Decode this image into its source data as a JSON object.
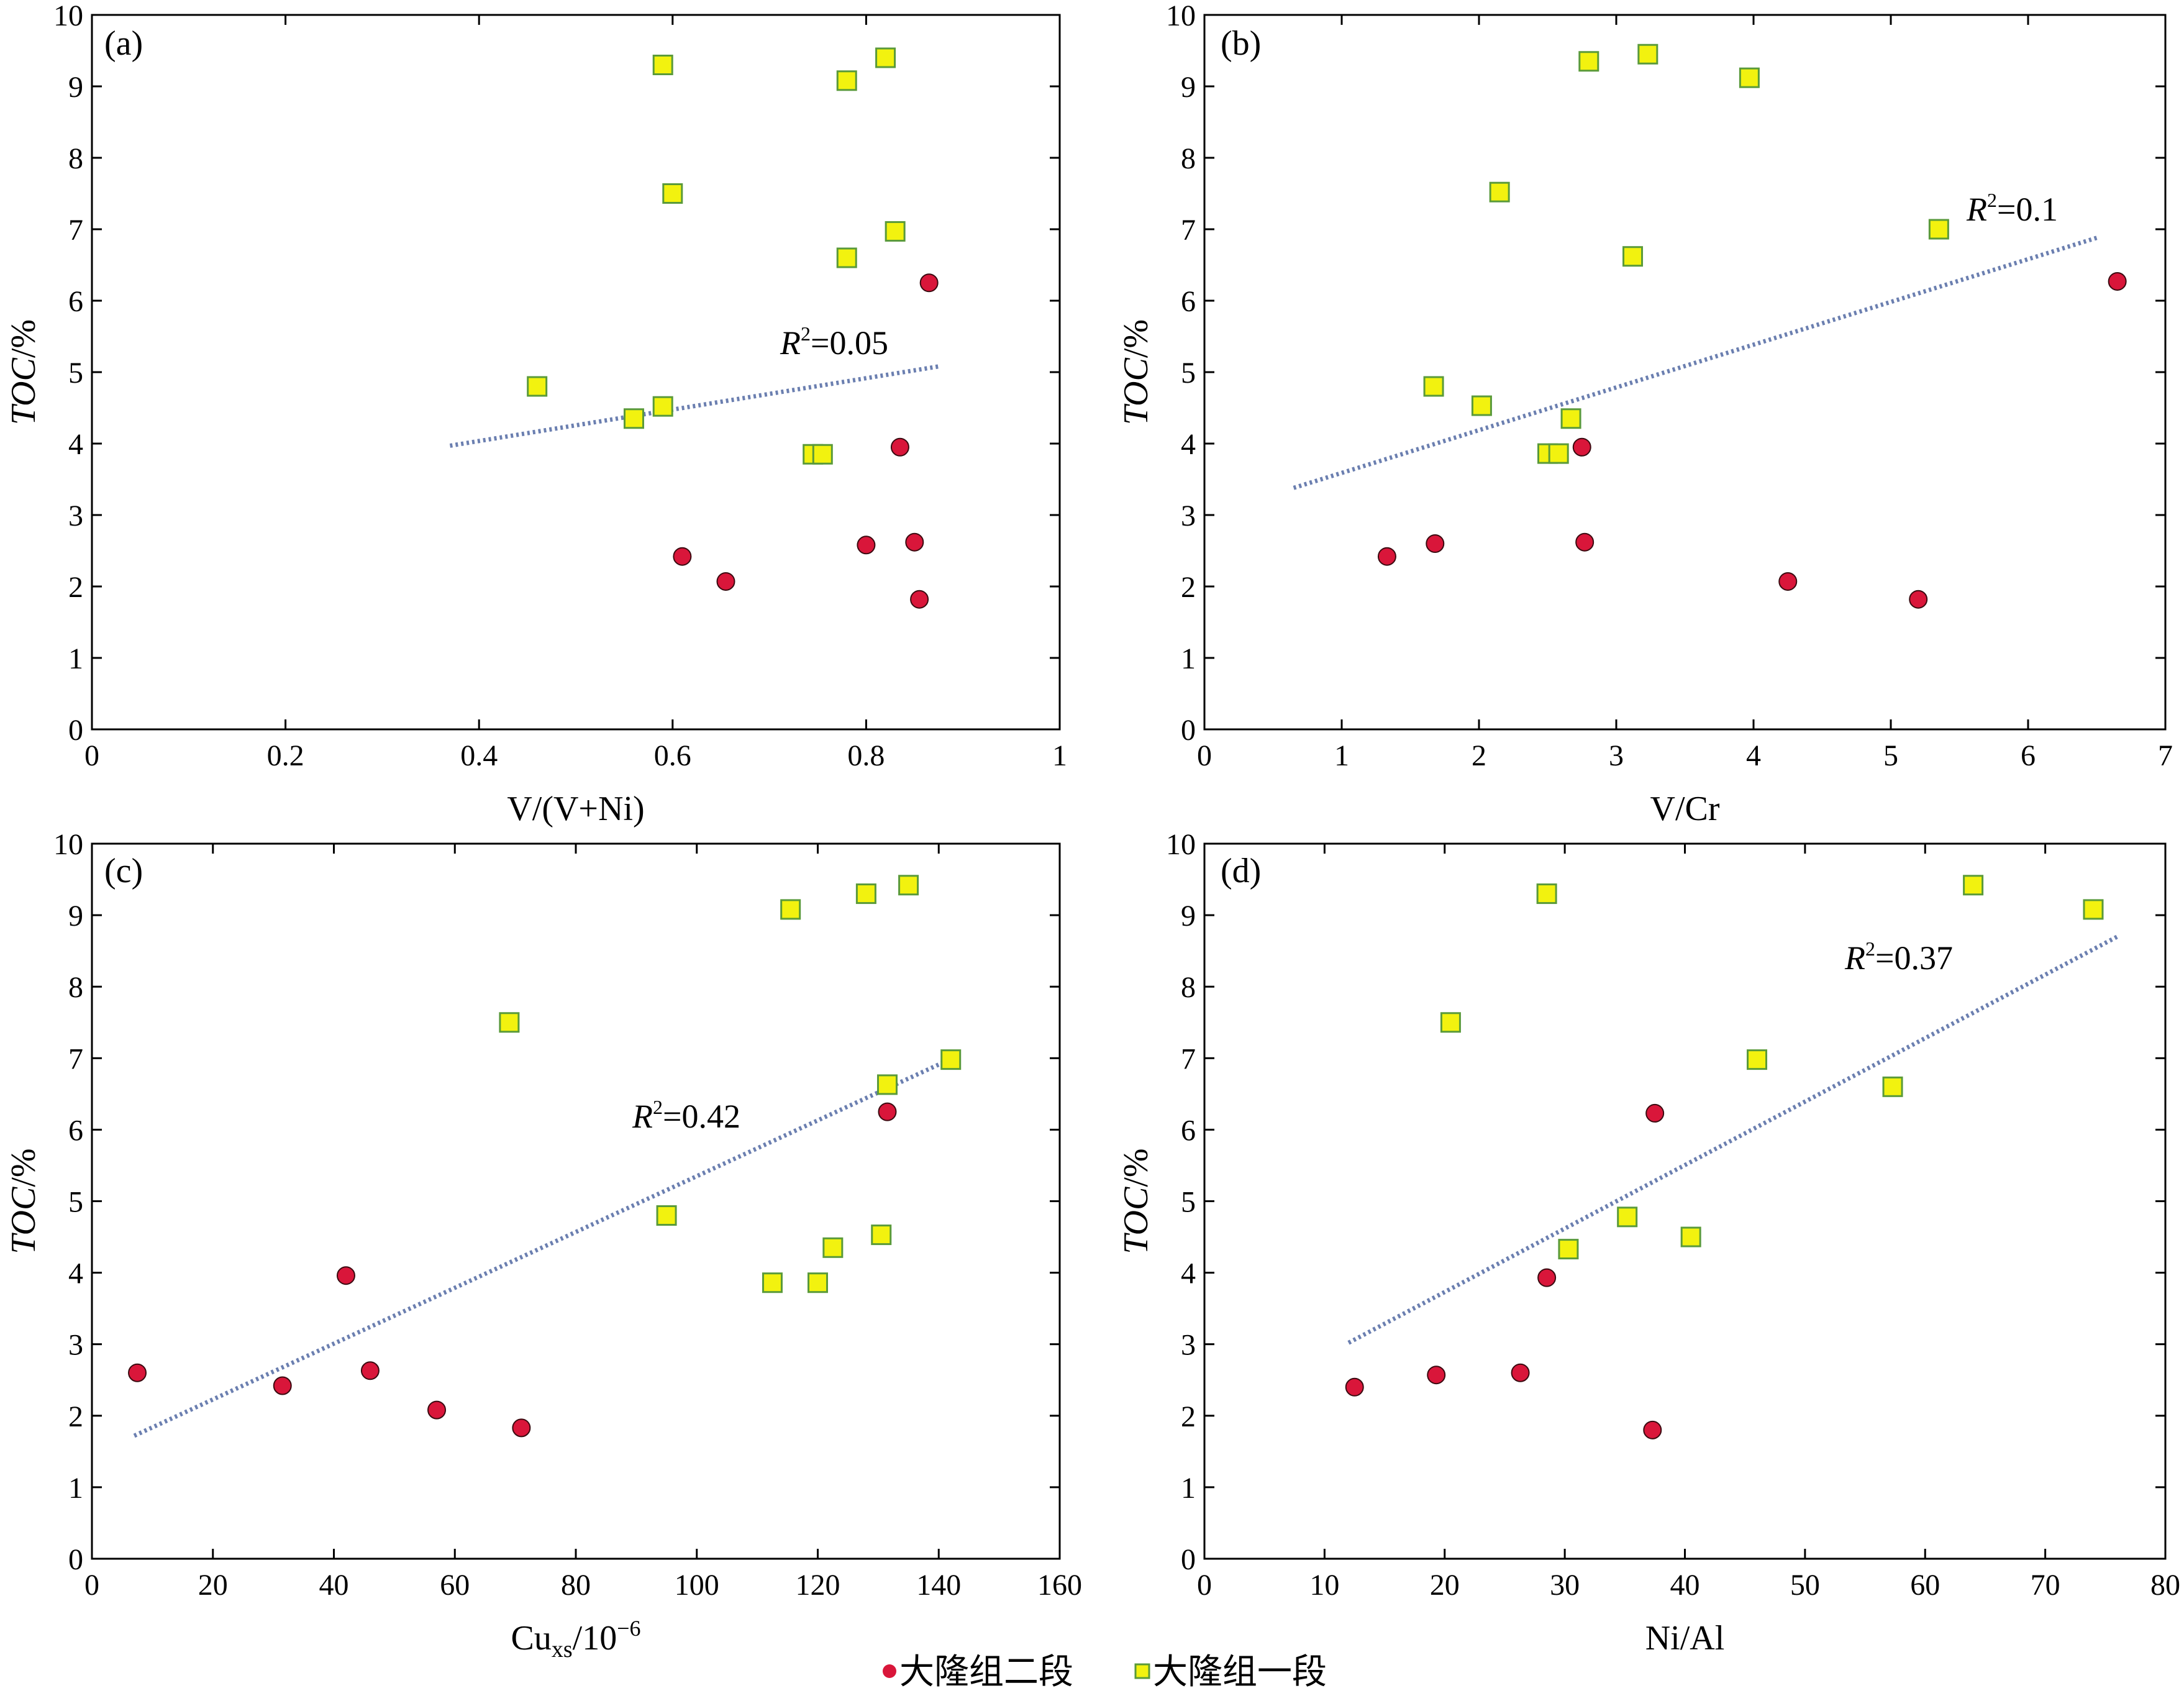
{
  "legend": {
    "series2_label": "大隆组二段",
    "series1_label": "大隆组一段",
    "series2_color": "#d9163a",
    "series1_color": "#f2f20f",
    "series1_edge": "#5a9a3a",
    "trend_color": "#6b7fb0"
  },
  "chart_data": [
    {
      "type": "scatter",
      "panel_label": "(a)",
      "xlabel": "V/(V+Ni)",
      "ylabel": "TOC/%",
      "xlim": [
        0,
        1
      ],
      "ylim": [
        0,
        10
      ],
      "xticks": [
        0,
        0.2,
        0.4,
        0.6,
        0.8,
        1
      ],
      "xtick_labels": [
        "0",
        "0.2",
        "0.4",
        "0.6",
        "0.8",
        "1"
      ],
      "yticks": [
        0,
        1,
        2,
        3,
        4,
        5,
        6,
        7,
        8,
        9,
        10
      ],
      "r2_text": "0.05",
      "trend": {
        "x": [
          0.37,
          0.875
        ],
        "y": [
          3.97,
          5.08
        ]
      },
      "series": [
        {
          "name": "大隆组二段",
          "points": [
            [
              0.865,
              6.25
            ],
            [
              0.835,
              3.95
            ],
            [
              0.61,
              2.42
            ],
            [
              0.655,
              2.07
            ],
            [
              0.8,
              2.58
            ],
            [
              0.85,
              2.62
            ],
            [
              0.855,
              1.82
            ]
          ]
        },
        {
          "name": "大隆组一段",
          "points": [
            [
              0.59,
              9.3
            ],
            [
              0.82,
              9.4
            ],
            [
              0.78,
              9.08
            ],
            [
              0.6,
              7.5
            ],
            [
              0.83,
              6.97
            ],
            [
              0.78,
              6.6
            ],
            [
              0.46,
              4.8
            ],
            [
              0.56,
              4.35
            ],
            [
              0.59,
              4.52
            ],
            [
              0.745,
              3.85
            ],
            [
              0.755,
              3.85
            ]
          ]
        }
      ]
    },
    {
      "type": "scatter",
      "panel_label": "(b)",
      "xlabel": "V/Cr",
      "ylabel": "TOC/%",
      "xlim": [
        0,
        7
      ],
      "ylim": [
        0,
        10
      ],
      "xticks": [
        0,
        1,
        2,
        3,
        4,
        5,
        6,
        7
      ],
      "xtick_labels": [
        "0",
        "1",
        "2",
        "3",
        "4",
        "5",
        "6",
        "7"
      ],
      "yticks": [
        0,
        1,
        2,
        3,
        4,
        5,
        6,
        7,
        8,
        9,
        10
      ],
      "r2_text": "0.1",
      "trend": {
        "x": [
          0.65,
          6.5
        ],
        "y": [
          3.38,
          6.88
        ]
      },
      "series": [
        {
          "name": "大隆组二段",
          "points": [
            [
              6.65,
              6.27
            ],
            [
              2.75,
              3.95
            ],
            [
              1.33,
              2.42
            ],
            [
              1.68,
              2.6
            ],
            [
              2.77,
              2.62
            ],
            [
              4.25,
              2.07
            ],
            [
              5.2,
              1.82
            ]
          ]
        },
        {
          "name": "大隆组一段",
          "points": [
            [
              2.8,
              9.35
            ],
            [
              3.23,
              9.45
            ],
            [
              3.97,
              9.12
            ],
            [
              2.15,
              7.52
            ],
            [
              5.35,
              7.0
            ],
            [
              3.12,
              6.62
            ],
            [
              1.67,
              4.8
            ],
            [
              2.02,
              4.53
            ],
            [
              2.67,
              4.35
            ],
            [
              2.5,
              3.86
            ],
            [
              2.58,
              3.86
            ]
          ]
        }
      ]
    },
    {
      "type": "scatter",
      "panel_label": "(c)",
      "xlabel": "Cu",
      "xlabel_sub": "xs",
      "xlabel_rest": "/10",
      "xlabel_sup": "−6",
      "ylabel": "TOC/%",
      "xlim": [
        0,
        160
      ],
      "ylim": [
        0,
        10
      ],
      "xticks": [
        0,
        20,
        40,
        60,
        80,
        100,
        120,
        140,
        160
      ],
      "xtick_labels": [
        "0",
        "20",
        "40",
        "60",
        "80",
        "100",
        "120",
        "140",
        "160"
      ],
      "yticks": [
        0,
        1,
        2,
        3,
        4,
        5,
        6,
        7,
        8,
        9,
        10
      ],
      "r2_text": "0.42",
      "trend": {
        "x": [
          7,
          141
        ],
        "y": [
          1.72,
          6.95
        ]
      },
      "series": [
        {
          "name": "大隆组二段",
          "points": [
            [
              7.5,
              2.6
            ],
            [
              31.5,
              2.42
            ],
            [
              42,
              3.96
            ],
            [
              46,
              2.63
            ],
            [
              57,
              2.08
            ],
            [
              71,
              1.83
            ],
            [
              131.5,
              6.25
            ]
          ]
        },
        {
          "name": "大隆组一段",
          "points": [
            [
              115.5,
              9.08
            ],
            [
              128,
              9.3
            ],
            [
              135,
              9.42
            ],
            [
              69,
              7.5
            ],
            [
              142,
              6.98
            ],
            [
              131.5,
              6.63
            ],
            [
              95,
              4.8
            ],
            [
              130.5,
              4.53
            ],
            [
              122.5,
              4.35
            ],
            [
              112.5,
              3.86
            ],
            [
              120,
              3.86
            ]
          ]
        }
      ]
    },
    {
      "type": "scatter",
      "panel_label": "(d)",
      "xlabel": "Ni/Al",
      "ylabel": "TOC/%",
      "xlim": [
        0,
        80
      ],
      "ylim": [
        0,
        10
      ],
      "xticks": [
        0,
        10,
        20,
        30,
        40,
        50,
        60,
        70,
        80
      ],
      "xtick_labels": [
        "0",
        "10",
        "20",
        "30",
        "40",
        "50",
        "60",
        "70",
        "80"
      ],
      "yticks": [
        0,
        1,
        2,
        3,
        4,
        5,
        6,
        7,
        8,
        9,
        10
      ],
      "r2_text": "0.37",
      "trend": {
        "x": [
          12,
          76
        ],
        "y": [
          3.02,
          8.7
        ]
      },
      "series": [
        {
          "name": "大隆组二段",
          "points": [
            [
              37.5,
              6.23
            ],
            [
              28.5,
              3.93
            ],
            [
              12.5,
              2.4
            ],
            [
              19.3,
              2.57
            ],
            [
              26.3,
              2.6
            ],
            [
              37.3,
              1.8
            ]
          ]
        },
        {
          "name": "大隆组一段",
          "points": [
            [
              28.5,
              9.3
            ],
            [
              64,
              9.42
            ],
            [
              74,
              9.08
            ],
            [
              20.5,
              7.5
            ],
            [
              46,
              6.98
            ],
            [
              57.3,
              6.6
            ],
            [
              35.2,
              4.78
            ],
            [
              40.5,
              4.5
            ],
            [
              30.3,
              4.33
            ]
          ]
        }
      ]
    }
  ]
}
